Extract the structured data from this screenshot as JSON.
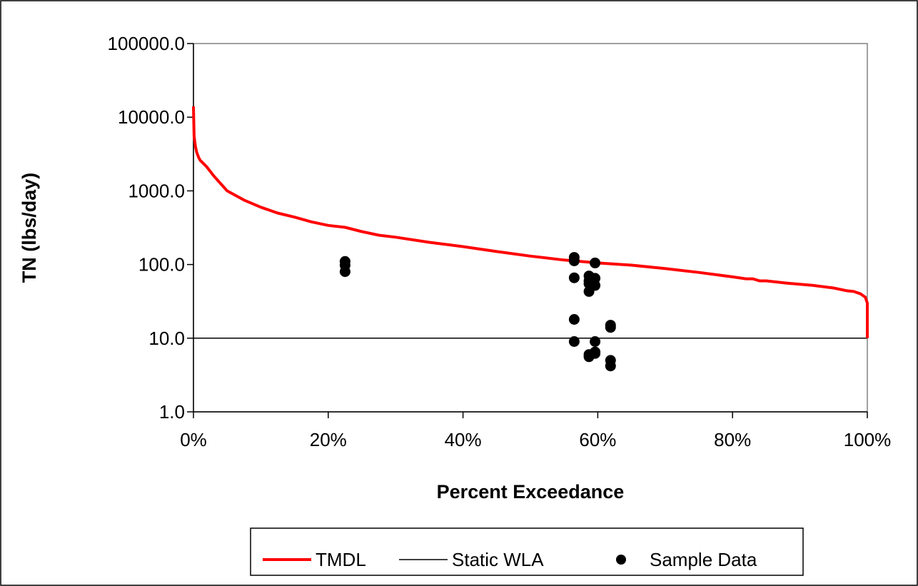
{
  "chart_data": {
    "type": "line",
    "title": "",
    "xlabel": "Percent Exceedance",
    "ylabel": "TN (lbs/day)",
    "x_scale": "linear",
    "y_scale": "log",
    "xlim": [
      0,
      100
    ],
    "ylim": [
      1,
      100000
    ],
    "x_ticks": [
      0,
      20,
      40,
      60,
      80,
      100
    ],
    "x_tick_labels": [
      "0%",
      "20%",
      "40%",
      "60%",
      "80%",
      "100%"
    ],
    "y_ticks": [
      1,
      10,
      100,
      1000,
      10000,
      100000
    ],
    "y_tick_labels": [
      "1.0",
      "10.0",
      "100.0",
      "1000.0",
      "10000.0",
      "100000.0"
    ],
    "grid": false,
    "legend_position": "bottom",
    "series": [
      {
        "name": "TMDL",
        "style": "line",
        "color": "#ff0000",
        "x": [
          0,
          0.1,
          0.3,
          0.5,
          0.8,
          1,
          2,
          3,
          5,
          7.5,
          10,
          12.5,
          15,
          17.5,
          20,
          22.5,
          25,
          27.5,
          30,
          35,
          40,
          45,
          50,
          55,
          60,
          65,
          70,
          75,
          80,
          82,
          83,
          84,
          85,
          88,
          92,
          95,
          97,
          98,
          99,
          99.7,
          100,
          100
        ],
        "y": [
          14000,
          5500,
          4000,
          3300,
          2800,
          2600,
          2100,
          1600,
          1000,
          750,
          600,
          500,
          440,
          380,
          340,
          320,
          280,
          250,
          235,
          200,
          175,
          150,
          130,
          115,
          105,
          98,
          88,
          78,
          68,
          64,
          64,
          60,
          60,
          56,
          52,
          48,
          44,
          43,
          40,
          36,
          30,
          10
        ]
      },
      {
        "name": "Static WLA",
        "style": "line",
        "color": "#000000",
        "x": [
          0,
          100
        ],
        "y": [
          10,
          10
        ]
      },
      {
        "name": "Sample Data",
        "style": "scatter",
        "color": "#000000",
        "x": [
          22.5,
          22.5,
          22.5,
          56.5,
          56.5,
          56.5,
          56.5,
          56.5,
          58.7,
          58.7,
          58.7,
          58.7,
          58.7,
          58.7,
          59.6,
          59.6,
          59.6,
          59.6,
          59.6,
          59.6,
          61.9,
          61.9,
          61.9,
          61.9
        ],
        "y": [
          110,
          98,
          80,
          125,
          112,
          66,
          18,
          9,
          70,
          60,
          55,
          43,
          6,
          5.6,
          105,
          65,
          52,
          9,
          6.5,
          6.2,
          15,
          14,
          5,
          4.2
        ]
      }
    ]
  }
}
